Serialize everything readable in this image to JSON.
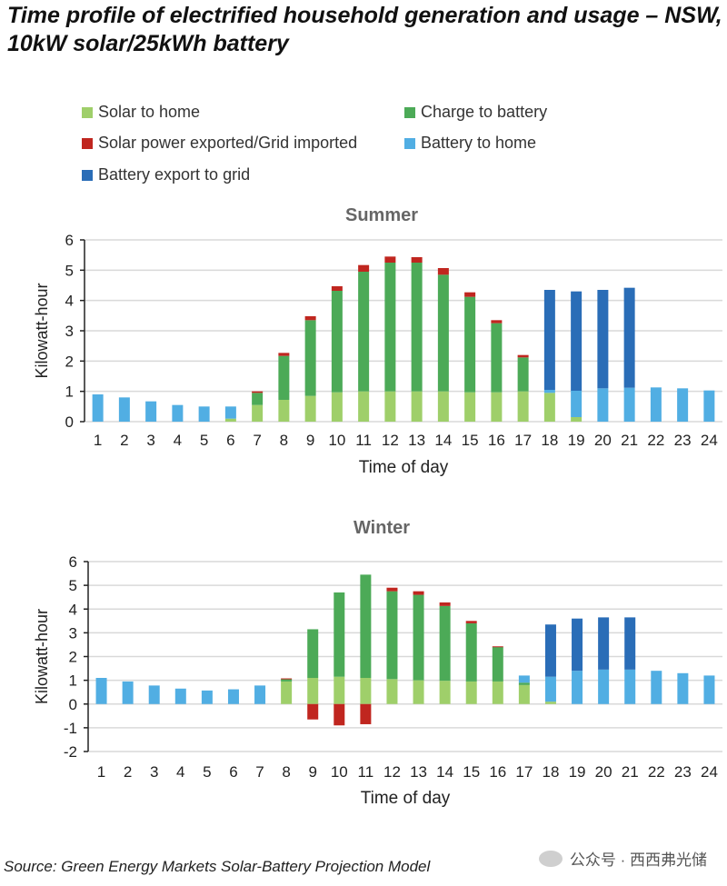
{
  "title": "Time profile of electrified household generation and usage – NSW, 10kW solar/25kWh battery",
  "legend": [
    {
      "key": "solar_to_home",
      "label": "Solar to home",
      "color": "#9fcf6a"
    },
    {
      "key": "charge_to_battery",
      "label": "Charge to battery",
      "color": "#4caa57"
    },
    {
      "key": "exported",
      "label": "Solar power exported/Grid imported",
      "color": "#c0261f"
    },
    {
      "key": "battery_to_home",
      "label": "Battery to home",
      "color": "#51aee3"
    },
    {
      "key": "battery_export",
      "label": "Battery export to grid",
      "color": "#2a6db7"
    }
  ],
  "chart_data": [
    {
      "type": "bar",
      "stacked": true,
      "title": "Summer",
      "xlabel": "Time of day",
      "ylabel": "Kilowatt-hour",
      "ylim": [
        0,
        6
      ],
      "yticks": [
        0,
        1,
        2,
        3,
        4,
        5,
        6
      ],
      "grid": true,
      "categories": [
        "1",
        "2",
        "3",
        "4",
        "5",
        "6",
        "7",
        "8",
        "9",
        "10",
        "11",
        "12",
        "13",
        "14",
        "15",
        "16",
        "17",
        "18",
        "19",
        "20",
        "21",
        "22",
        "23",
        "24"
      ],
      "series": [
        {
          "name": "Solar to home",
          "values": [
            0,
            0,
            0,
            0,
            0,
            0.1,
            0.55,
            0.72,
            0.85,
            0.97,
            1.0,
            1.0,
            1.0,
            1.0,
            0.97,
            0.97,
            1.0,
            0.95,
            0.15,
            0,
            0,
            0,
            0,
            0
          ]
        },
        {
          "name": "Charge to battery",
          "values": [
            0,
            0,
            0,
            0,
            0,
            0,
            0.4,
            1.45,
            2.5,
            3.35,
            3.95,
            4.25,
            4.25,
            3.85,
            3.15,
            2.28,
            1.12,
            0,
            0,
            0,
            0,
            0,
            0,
            0
          ]
        },
        {
          "name": "Solar power exported/Grid imported",
          "values": [
            0,
            0,
            0,
            0,
            0,
            0,
            0.05,
            0.1,
            0.13,
            0.15,
            0.22,
            0.2,
            0.18,
            0.22,
            0.15,
            0.1,
            0.08,
            0,
            0,
            0,
            0,
            0,
            0,
            0
          ]
        },
        {
          "name": "Battery to home",
          "values": [
            0.9,
            0.8,
            0.67,
            0.55,
            0.5,
            0.4,
            0,
            0,
            0,
            0,
            0,
            0,
            0,
            0,
            0,
            0,
            0,
            0.1,
            0.87,
            1.1,
            1.12,
            1.13,
            1.1,
            1.03
          ]
        },
        {
          "name": "Battery export to grid",
          "values": [
            0,
            0,
            0,
            0,
            0,
            0,
            0,
            0,
            0,
            0,
            0,
            0,
            0,
            0,
            0,
            0,
            0,
            3.3,
            3.28,
            3.25,
            3.3,
            0,
            0,
            0
          ]
        }
      ]
    },
    {
      "type": "bar",
      "stacked": true,
      "title": "Winter",
      "xlabel": "Time of day",
      "ylabel": "Kilowatt-hour",
      "ylim": [
        -2,
        6
      ],
      "yticks": [
        -2,
        -1,
        0,
        1,
        2,
        3,
        4,
        5,
        6
      ],
      "grid": true,
      "categories": [
        "1",
        "2",
        "3",
        "4",
        "5",
        "6",
        "7",
        "8",
        "9",
        "10",
        "11",
        "12",
        "13",
        "14",
        "15",
        "16",
        "17",
        "18",
        "19",
        "20",
        "21",
        "22",
        "23",
        "24"
      ],
      "series": [
        {
          "name": "Solar to home",
          "values": [
            0,
            0,
            0,
            0,
            0,
            0,
            0,
            0.95,
            1.1,
            1.15,
            1.1,
            1.05,
            1.0,
            0.98,
            0.95,
            0.95,
            0.8,
            0.1,
            0,
            0,
            0,
            0,
            0,
            0
          ]
        },
        {
          "name": "Charge to battery",
          "values": [
            0,
            0,
            0,
            0,
            0,
            0,
            0,
            0.1,
            2.05,
            3.55,
            4.35,
            3.7,
            3.6,
            3.15,
            2.45,
            1.45,
            0.1,
            0,
            0,
            0,
            0,
            0,
            0,
            0
          ]
        },
        {
          "name": "Solar power exported/Grid imported",
          "values": [
            0,
            0,
            0,
            0,
            0,
            0,
            0,
            0.03,
            -0.65,
            -0.9,
            -0.85,
            0.15,
            0.15,
            0.15,
            0.1,
            0.03,
            0,
            0,
            0,
            0,
            0,
            0,
            0,
            0
          ]
        },
        {
          "name": "Battery to home",
          "values": [
            1.1,
            0.95,
            0.78,
            0.65,
            0.57,
            0.62,
            0.78,
            0,
            0,
            0,
            0,
            0,
            0,
            0,
            0,
            0,
            0.3,
            1.05,
            1.4,
            1.45,
            1.45,
            1.4,
            1.3,
            1.2
          ]
        },
        {
          "name": "Battery export to grid",
          "values": [
            0,
            0,
            0,
            0,
            0,
            0,
            0,
            0,
            0,
            0,
            0,
            0,
            0,
            0,
            0,
            0,
            0,
            2.2,
            2.2,
            2.2,
            2.2,
            0,
            0,
            0
          ]
        }
      ]
    }
  ],
  "source": "Source: Green Energy Markets Solar-Battery Projection Model",
  "watermark": "公众号 · 西西弗光储"
}
